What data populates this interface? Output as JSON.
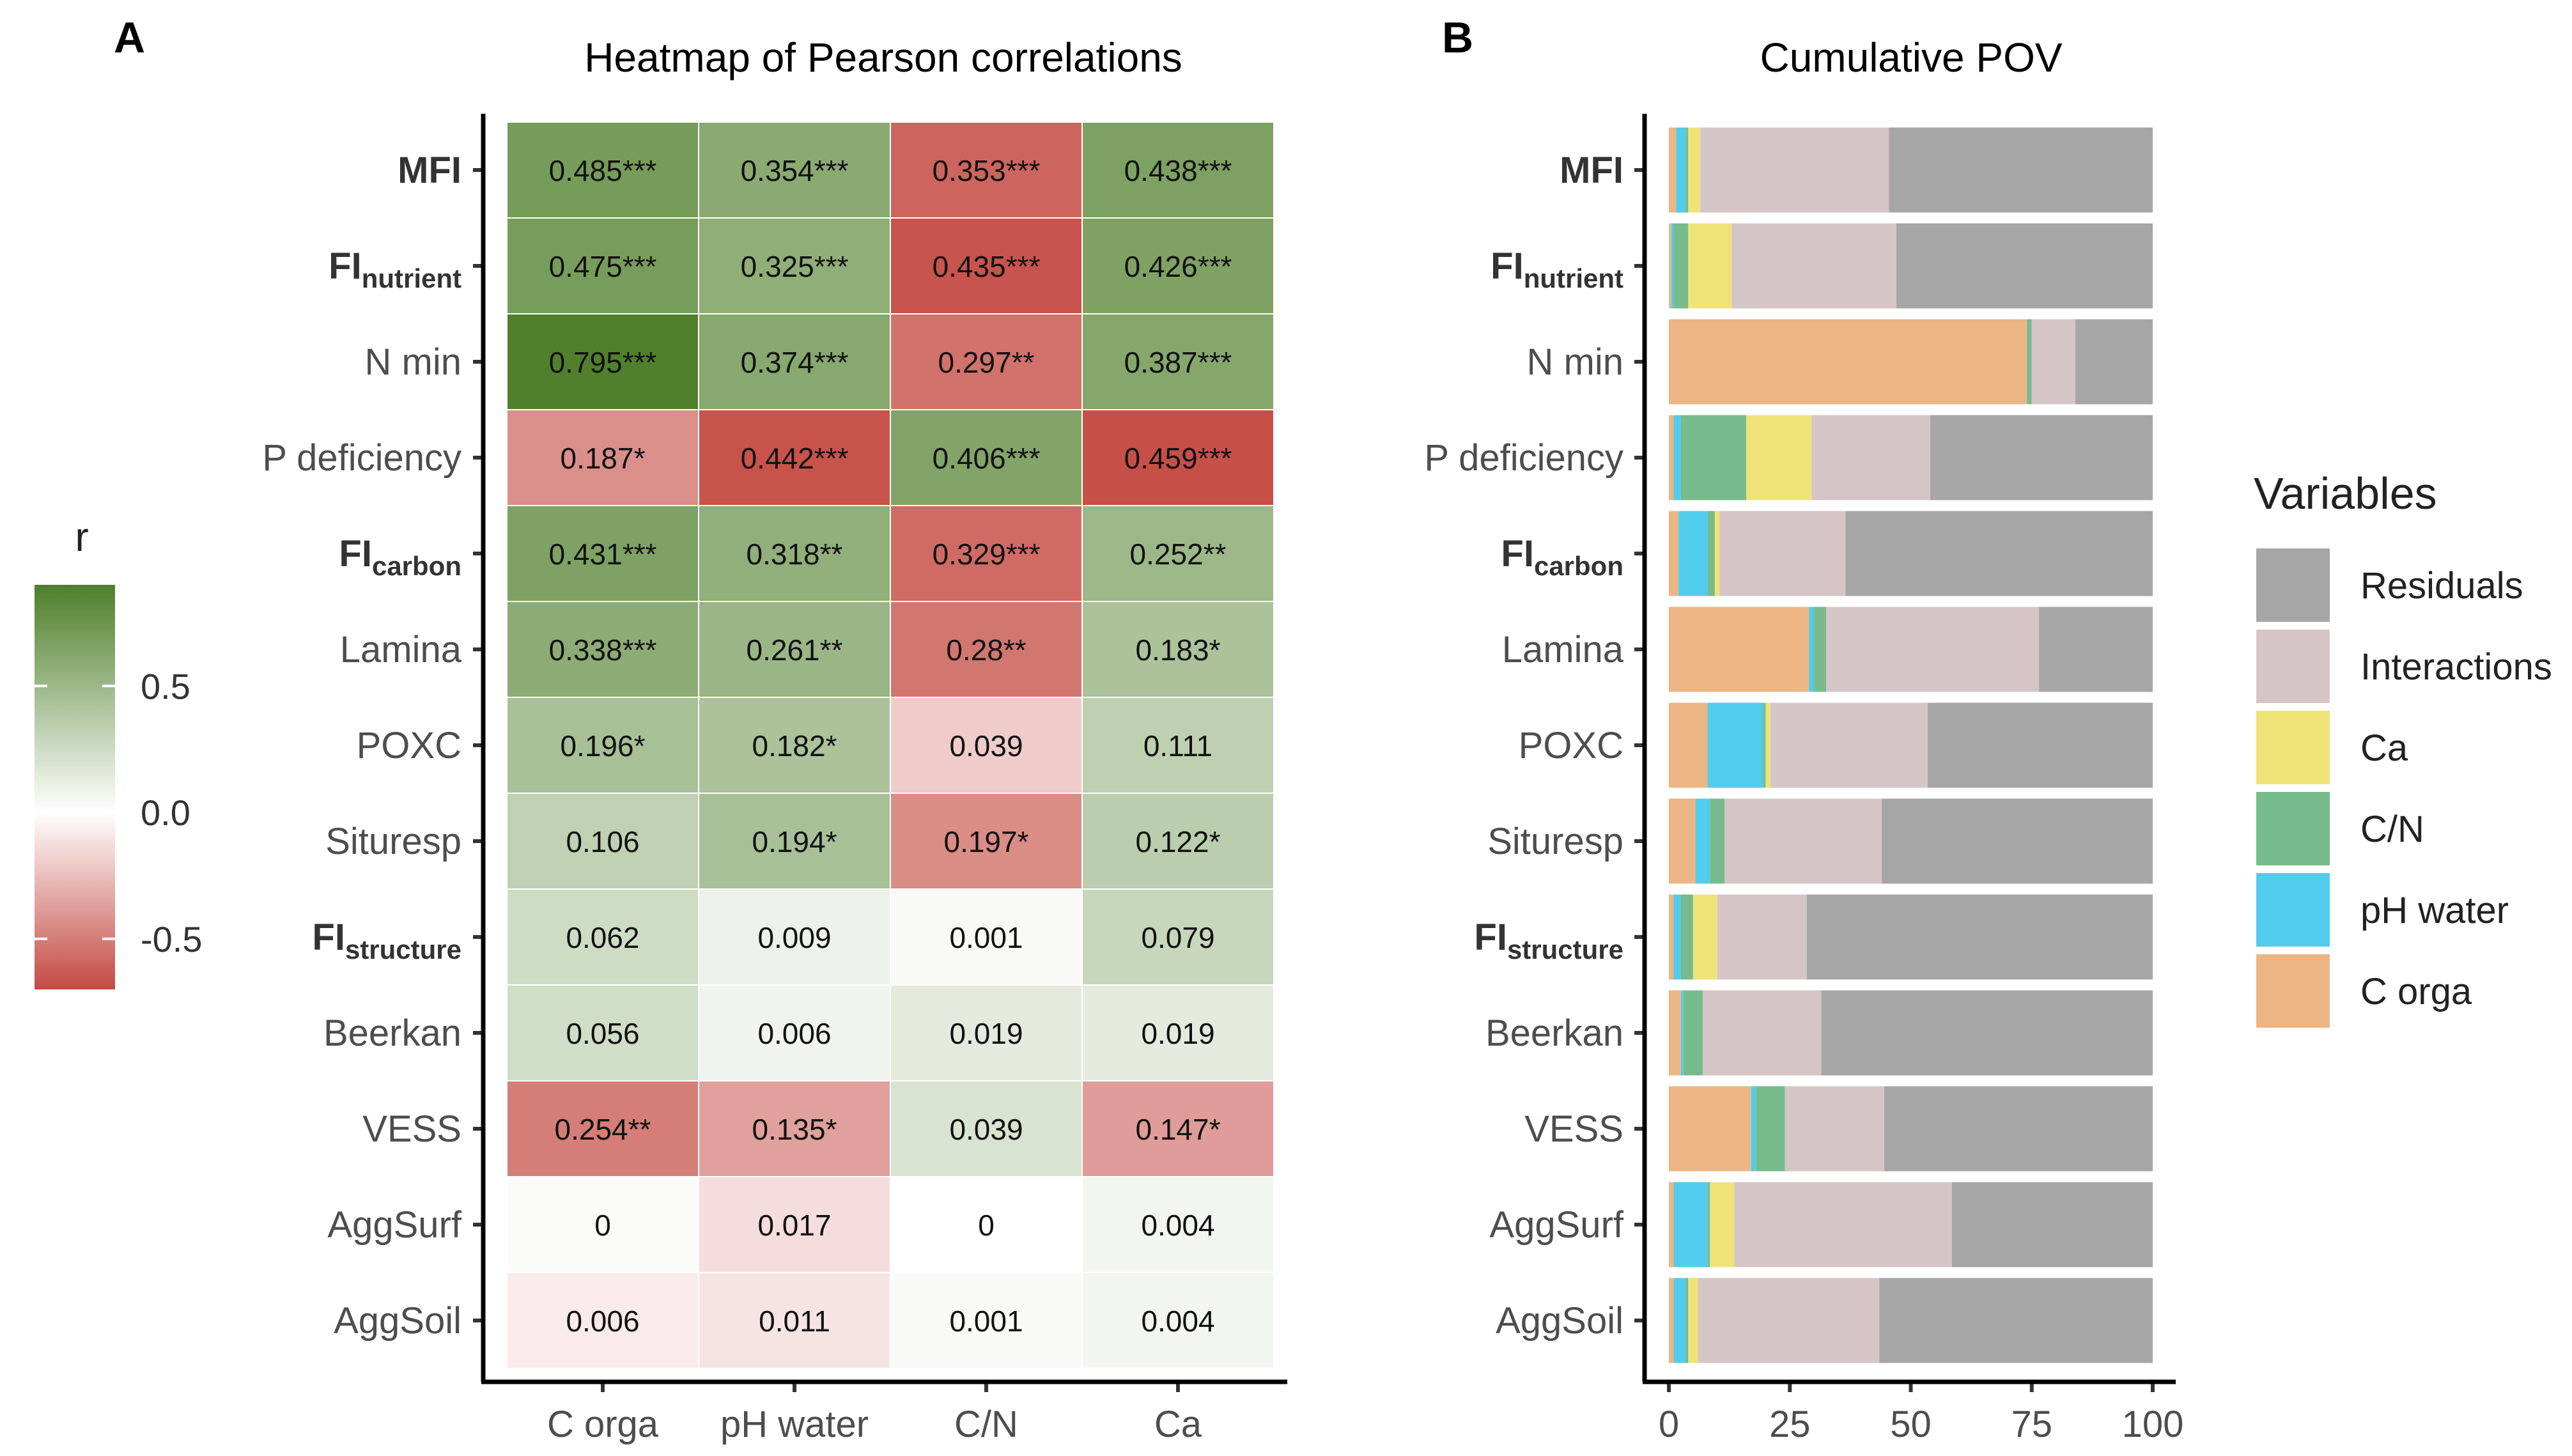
{
  "panels": {
    "a": {
      "letter": "A"
    },
    "b": {
      "letter": "B"
    }
  },
  "chart_data": [
    {
      "type": "heatmap",
      "title": "Heatmap of Pearson correlations",
      "xlabel": "",
      "ylabel": "",
      "columns": [
        "C orga",
        "pH water",
        "C/N",
        "Ca"
      ],
      "rows": [
        {
          "label": "MFI",
          "bold": true,
          "sub": ""
        },
        {
          "label": "FI",
          "bold": true,
          "sub": "nutrient"
        },
        {
          "label": "N min",
          "bold": false,
          "sub": ""
        },
        {
          "label": "P deficiency",
          "bold": false,
          "sub": ""
        },
        {
          "label": "FI",
          "bold": true,
          "sub": "carbon"
        },
        {
          "label": "Lamina",
          "bold": false,
          "sub": ""
        },
        {
          "label": "POXC",
          "bold": false,
          "sub": ""
        },
        {
          "label": "Situresp",
          "bold": false,
          "sub": ""
        },
        {
          "label": "FI",
          "bold": true,
          "sub": "structure"
        },
        {
          "label": "Beerkan",
          "bold": false,
          "sub": ""
        },
        {
          "label": "VESS",
          "bold": false,
          "sub": ""
        },
        {
          "label": "AggSurf",
          "bold": false,
          "sub": ""
        },
        {
          "label": "AggSoil",
          "bold": false,
          "sub": ""
        }
      ],
      "cell_labels": [
        [
          "0.485***",
          "0.354***",
          "0.353***",
          "0.438***"
        ],
        [
          "0.475***",
          "0.325***",
          "0.435***",
          "0.426***"
        ],
        [
          "0.795***",
          "0.374***",
          "0.297**",
          "0.387***"
        ],
        [
          "0.187*",
          "0.442***",
          "0.406***",
          "0.459***"
        ],
        [
          "0.431***",
          "0.318**",
          "0.329***",
          "0.252**"
        ],
        [
          "0.338***",
          "0.261**",
          "0.28**",
          "0.183*"
        ],
        [
          "0.196*",
          "0.182*",
          "0.039",
          "0.111"
        ],
        [
          "0.106",
          "0.194*",
          "0.197*",
          "0.122*"
        ],
        [
          "0.062",
          "0.009",
          "0.001",
          "0.079"
        ],
        [
          "0.056",
          "0.006",
          "0.019",
          "0.019"
        ],
        [
          "0.254**",
          "0.135*",
          "0.039",
          "0.147*"
        ],
        [
          "0",
          "0.017",
          "0",
          "0.004"
        ],
        [
          "0.006",
          "0.011",
          "0.001",
          "0.004"
        ]
      ],
      "r_values": [
        [
          0.696,
          0.595,
          -0.594,
          0.662
        ],
        [
          0.689,
          0.57,
          -0.66,
          0.653
        ],
        [
          0.892,
          0.612,
          -0.545,
          0.622
        ],
        [
          -0.432,
          -0.665,
          0.637,
          -0.677
        ],
        [
          0.657,
          0.564,
          -0.574,
          0.502
        ],
        [
          0.581,
          0.511,
          -0.529,
          0.428
        ],
        [
          0.443,
          0.427,
          -0.197,
          0.333
        ],
        [
          0.326,
          0.44,
          -0.444,
          0.349
        ],
        [
          0.249,
          0.095,
          0.032,
          0.281
        ],
        [
          0.237,
          0.077,
          0.138,
          0.138
        ],
        [
          -0.504,
          -0.367,
          0.197,
          -0.383
        ],
        [
          0.02,
          -0.13,
          0.0,
          0.063
        ],
        [
          -0.077,
          -0.105,
          0.032,
          0.063
        ]
      ],
      "colorbar": {
        "title": "r",
        "range": [
          -0.7,
          0.9
        ],
        "ticks": [
          -0.5,
          0.0,
          0.5
        ],
        "tick_labels": [
          "-0.5",
          "0.0",
          "0.5"
        ],
        "low_color": "#c44a42",
        "mid_color": "#ffffff",
        "high_color": "#4e7f2a"
      }
    },
    {
      "type": "bar",
      "orientation": "horizontal",
      "stacked": true,
      "title": "Cumulative POV",
      "xlabel": "",
      "ylabel": "",
      "xlim": [
        0,
        100
      ],
      "x_ticks": [
        0,
        25,
        50,
        75,
        100
      ],
      "categories": [
        "MFI",
        "FInutrient",
        "N min",
        "P deficiency",
        "FIcarbon",
        "Lamina",
        "POXC",
        "Situresp",
        "FIstructure",
        "Beerkan",
        "VESS",
        "AggSurf",
        "AggSoil"
      ],
      "legend": {
        "title": "Variables",
        "position": "right"
      },
      "series": [
        {
          "name": "C orga",
          "color": "#ebb684",
          "values": [
            1.5,
            0.5,
            74,
            1,
            2,
            29,
            8,
            5.5,
            1,
            2.5,
            17,
            1,
            1
          ]
        },
        {
          "name": "pH water",
          "color": "#52ccec",
          "values": [
            2,
            0.5,
            0,
            1.5,
            6,
            1,
            11.5,
            3,
            1.5,
            0.5,
            1,
            7,
            2.5
          ]
        },
        {
          "name": "C/N",
          "color": "#77bb8c",
          "values": [
            0.5,
            3,
            1,
            13.5,
            1.5,
            2.5,
            0.5,
            3,
            2.5,
            4,
            6,
            0.5,
            0.5
          ]
        },
        {
          "name": "Ca",
          "color": "#efe378",
          "values": [
            2.5,
            9,
            0,
            13.5,
            1,
            0,
            1,
            0,
            5,
            0,
            0,
            5,
            2
          ]
        },
        {
          "name": "Interactions",
          "color": "#d6c5c7",
          "values": [
            39,
            34,
            9,
            24.5,
            26,
            44,
            32.5,
            32.5,
            18.5,
            24.5,
            20.5,
            45,
            37.5
          ]
        },
        {
          "name": "Residuals",
          "color": "#a6a6a6",
          "values": [
            54.5,
            53,
            16,
            46,
            63.5,
            23.5,
            46.5,
            56,
            71.5,
            68.5,
            55.5,
            41.5,
            56.5
          ]
        }
      ],
      "legend_order": [
        "Residuals",
        "Interactions",
        "Ca",
        "C/N",
        "pH water",
        "C orga"
      ]
    }
  ]
}
